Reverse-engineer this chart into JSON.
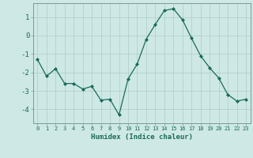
{
  "x": [
    0,
    1,
    2,
    3,
    4,
    5,
    6,
    7,
    8,
    9,
    10,
    11,
    12,
    13,
    14,
    15,
    16,
    17,
    18,
    19,
    20,
    21,
    22,
    23
  ],
  "y": [
    -1.3,
    -2.2,
    -1.8,
    -2.6,
    -2.6,
    -2.9,
    -2.75,
    -3.5,
    -3.45,
    -4.3,
    -2.35,
    -1.55,
    -0.2,
    0.6,
    1.35,
    1.45,
    0.85,
    -0.15,
    -1.1,
    -1.75,
    -2.3,
    -3.2,
    -3.55,
    -3.45
  ],
  "xlabel": "Humidex (Indice chaleur)",
  "xlim": [
    -0.5,
    23.5
  ],
  "ylim": [
    -4.75,
    1.75
  ],
  "yticks": [
    -4,
    -3,
    -2,
    -1,
    0,
    1
  ],
  "xticks": [
    0,
    1,
    2,
    3,
    4,
    5,
    6,
    7,
    8,
    9,
    10,
    11,
    12,
    13,
    14,
    15,
    16,
    17,
    18,
    19,
    20,
    21,
    22,
    23
  ],
  "line_color": "#1a6b5a",
  "marker": "D",
  "marker_size": 2.0,
  "bg_color": "#cde8e5",
  "grid_color": "#b0ccca",
  "spine_color": "#7a9a98",
  "tick_label_color": "#1a6b5a",
  "xlabel_color": "#1a6b5a",
  "xtick_fontsize": 5.0,
  "ytick_fontsize": 6.5,
  "xlabel_fontsize": 6.5
}
